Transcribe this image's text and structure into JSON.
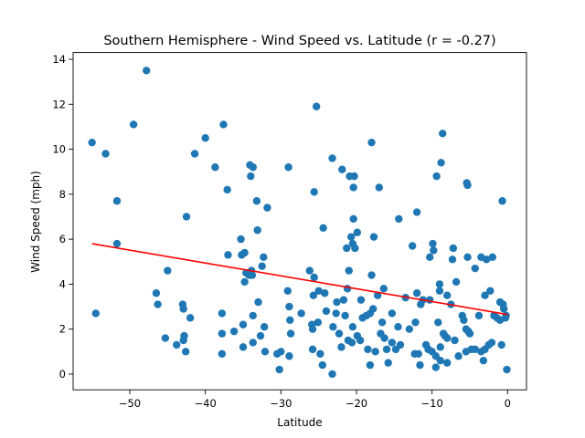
{
  "chart_data": {
    "type": "scatter",
    "title": "Southern Hemisphere - Wind Speed vs. Latitude (r = -0.27)",
    "xlabel": "Latitude",
    "ylabel": "Wind Speed (mph)",
    "xlim": [
      -57.5,
      2.5
    ],
    "ylim": [
      -0.7,
      14.3
    ],
    "xticks": [
      -50,
      -40,
      -30,
      -20,
      -10,
      0
    ],
    "xtick_labels": [
      "−50",
      "−40",
      "−30",
      "−20",
      "−10",
      "0"
    ],
    "yticks": [
      0,
      2,
      4,
      6,
      8,
      10,
      12,
      14
    ],
    "ytick_labels": [
      "0",
      "2",
      "4",
      "6",
      "8",
      "10",
      "12",
      "14"
    ],
    "grid": false,
    "point_color": "#1f77b4",
    "line_color": "#ff0000",
    "regression_line": {
      "x": [
        -55,
        0
      ],
      "y": [
        5.8,
        2.65
      ]
    },
    "points": [
      [
        -55,
        10.3
      ],
      [
        -54.5,
        2.7
      ],
      [
        -53.2,
        9.8
      ],
      [
        -51.7,
        7.7
      ],
      [
        -51.7,
        5.8
      ],
      [
        -49.5,
        11.1
      ],
      [
        -47.8,
        13.5
      ],
      [
        -46.5,
        3.6
      ],
      [
        -46.3,
        3.1
      ],
      [
        -45.3,
        1.6
      ],
      [
        -45,
        4.6
      ],
      [
        -43.8,
        1.3
      ],
      [
        -43,
        3.1
      ],
      [
        -42.9,
        2.9
      ],
      [
        -42.9,
        1.5
      ],
      [
        -42.8,
        1.7
      ],
      [
        -42.6,
        1.0
      ],
      [
        -42.5,
        7.0
      ],
      [
        -42,
        2.5
      ],
      [
        -41.4,
        9.8
      ],
      [
        -40,
        10.5
      ],
      [
        -38.7,
        9.2
      ],
      [
        -37.8,
        2.7
      ],
      [
        -37.8,
        1.8
      ],
      [
        -37.8,
        0.9
      ],
      [
        -37.6,
        11.1
      ],
      [
        -37.1,
        8.2
      ],
      [
        -37,
        5.3
      ],
      [
        -36.2,
        1.9
      ],
      [
        -35.3,
        6.0
      ],
      [
        -35.2,
        5.3
      ],
      [
        -35,
        2.2
      ],
      [
        -35,
        1.2
      ],
      [
        -34.8,
        5.4
      ],
      [
        -34.8,
        4.1
      ],
      [
        -34.6,
        4.5
      ],
      [
        -34.2,
        4.4
      ],
      [
        -34.1,
        9.3
      ],
      [
        -34,
        8.8
      ],
      [
        -33.9,
        4.6
      ],
      [
        -33.8,
        4.4
      ],
      [
        -33.7,
        9.2
      ],
      [
        -33.7,
        1.4
      ],
      [
        -33.7,
        2.6
      ],
      [
        -33.2,
        7.7
      ],
      [
        -33.1,
        6.4
      ],
      [
        -33,
        3.2
      ],
      [
        -32.7,
        1.7
      ],
      [
        -32.5,
        4.8
      ],
      [
        -32.3,
        5.2
      ],
      [
        -32.2,
        2.1
      ],
      [
        -32.1,
        1.0
      ],
      [
        -31.8,
        7.4
      ],
      [
        -30.5,
        0.9
      ],
      [
        -30.2,
        0.2
      ],
      [
        -30,
        1.0
      ],
      [
        -29.1,
        3.7
      ],
      [
        -29,
        9.2
      ],
      [
        -28.9,
        3.0
      ],
      [
        -28.9,
        0.8
      ],
      [
        -28.8,
        2.4
      ],
      [
        -28.7,
        1.8
      ],
      [
        -27.3,
        2.7
      ],
      [
        -26.2,
        4.6
      ],
      [
        -25.9,
        2.2
      ],
      [
        -25.8,
        1.1
      ],
      [
        -25.8,
        2.0
      ],
      [
        -25.7,
        3.5
      ],
      [
        -25.6,
        8.1
      ],
      [
        -25.6,
        4.3
      ],
      [
        -25.3,
        11.9
      ],
      [
        -25.1,
        2.3
      ],
      [
        -25,
        3.7
      ],
      [
        -24.8,
        0.9
      ],
      [
        -24.5,
        0.4
      ],
      [
        -24.4,
        6.5
      ],
      [
        -24.2,
        3.6
      ],
      [
        -24,
        2.8
      ],
      [
        -23.2,
        0.0
      ],
      [
        -23.2,
        9.6
      ],
      [
        -23.1,
        2.1
      ],
      [
        -22.7,
        2.7
      ],
      [
        -22.6,
        3.2
      ],
      [
        -22.3,
        1.8
      ],
      [
        -22,
        1.2
      ],
      [
        -21.9,
        9.1
      ],
      [
        -21.7,
        3.3
      ],
      [
        -21.5,
        2.6
      ],
      [
        -21.3,
        5.6
      ],
      [
        -21.2,
        3.8
      ],
      [
        -21.1,
        1.5
      ],
      [
        -21,
        4.6
      ],
      [
        -20.9,
        8.8
      ],
      [
        -20.7,
        6.1
      ],
      [
        -20.6,
        1.4
      ],
      [
        -20.5,
        2.1
      ],
      [
        -20.5,
        5.8
      ],
      [
        -20.4,
        8.3
      ],
      [
        -20.4,
        6.9
      ],
      [
        -20.3,
        8.8
      ],
      [
        -20.2,
        5.6
      ],
      [
        -19.9,
        1.7
      ],
      [
        -19.9,
        6.3
      ],
      [
        -19.5,
        1.5
      ],
      [
        -19.4,
        3.3
      ],
      [
        -19.2,
        2.5
      ],
      [
        -18.7,
        2.6
      ],
      [
        -18.5,
        1.1
      ],
      [
        -18.2,
        0.4
      ],
      [
        -18.2,
        2.7
      ],
      [
        -18,
        10.3
      ],
      [
        -18,
        4.4
      ],
      [
        -17.8,
        2.9
      ],
      [
        -17.7,
        6.1
      ],
      [
        -17.5,
        1.0
      ],
      [
        -17.2,
        3.5
      ],
      [
        -17,
        8.3
      ],
      [
        -16.8,
        1.8
      ],
      [
        -16.6,
        2.3
      ],
      [
        -16.4,
        3.8
      ],
      [
        -16.3,
        1.6
      ],
      [
        -16,
        1.1
      ],
      [
        -15.8,
        0.5
      ],
      [
        -15.3,
        2.7
      ],
      [
        -15.3,
        1.4
      ],
      [
        -14.8,
        1.1
      ],
      [
        -14.5,
        2.1
      ],
      [
        -14.4,
        6.9
      ],
      [
        -14.2,
        1.3
      ],
      [
        -13.5,
        3.4
      ],
      [
        -13,
        2.0
      ],
      [
        -12.6,
        5.7
      ],
      [
        -12.3,
        0.9
      ],
      [
        -12.2,
        2.3
      ],
      [
        -12,
        7.2
      ],
      [
        -12,
        3.6
      ],
      [
        -11.8,
        0.9
      ],
      [
        -11.6,
        0.4
      ],
      [
        -11.5,
        3.1
      ],
      [
        -11.2,
        3.3
      ],
      [
        -10.8,
        1.3
      ],
      [
        -10.5,
        1.1
      ],
      [
        -10.3,
        3.3
      ],
      [
        -10.3,
        5.2
      ],
      [
        -10,
        1.0
      ],
      [
        -9.9,
        5.8
      ],
      [
        -9.8,
        5.5
      ],
      [
        -9.5,
        0.3
      ],
      [
        -9.5,
        0.8
      ],
      [
        -9.4,
        8.8
      ],
      [
        -9.2,
        2.3
      ],
      [
        -9,
        4.0
      ],
      [
        -9,
        3.7
      ],
      [
        -8.9,
        0.6
      ],
      [
        -8.9,
        1.2
      ],
      [
        -8.8,
        9.4
      ],
      [
        -8.6,
        10.7
      ],
      [
        -8.5,
        1.8
      ],
      [
        -8.3,
        1.7
      ],
      [
        -8,
        1.6
      ],
      [
        -8,
        0.5
      ],
      [
        -8,
        3.5
      ],
      [
        -7.5,
        3.1
      ],
      [
        -7.3,
        5.1
      ],
      [
        -7.2,
        5.6
      ],
      [
        -7,
        1.5
      ],
      [
        -6.8,
        4.1
      ],
      [
        -6.5,
        0.8
      ],
      [
        -6,
        2.6
      ],
      [
        -5.8,
        2.4
      ],
      [
        -5.5,
        2.0
      ],
      [
        -5.5,
        1.0
      ],
      [
        -5.4,
        8.5
      ],
      [
        -5.3,
        8.4
      ],
      [
        -5.3,
        5.2
      ],
      [
        -5.2,
        1.9
      ],
      [
        -5,
        1.8
      ],
      [
        -4.8,
        1.1
      ],
      [
        -4.3,
        4.7
      ],
      [
        -4.3,
        1.1
      ],
      [
        -3.8,
        2.6
      ],
      [
        -3.5,
        1.0
      ],
      [
        -3.5,
        5.2
      ],
      [
        -3.2,
        0.6
      ],
      [
        -3,
        3.5
      ],
      [
        -3,
        1.1
      ],
      [
        -2.8,
        5.1
      ],
      [
        -2.5,
        1.3
      ],
      [
        -2.3,
        3.7
      ],
      [
        -2.1,
        1.4
      ],
      [
        -2,
        5.2
      ],
      [
        -1.8,
        2.6
      ],
      [
        -1.4,
        2.5
      ],
      [
        -1,
        2.4
      ],
      [
        -1,
        3.2
      ],
      [
        -0.8,
        1.3
      ],
      [
        -0.7,
        7.7
      ],
      [
        -0.6,
        3.1
      ],
      [
        -0.5,
        2.9
      ],
      [
        -0.3,
        2.5
      ],
      [
        -0.2,
        2.6
      ],
      [
        -0.1,
        0.2
      ]
    ]
  }
}
